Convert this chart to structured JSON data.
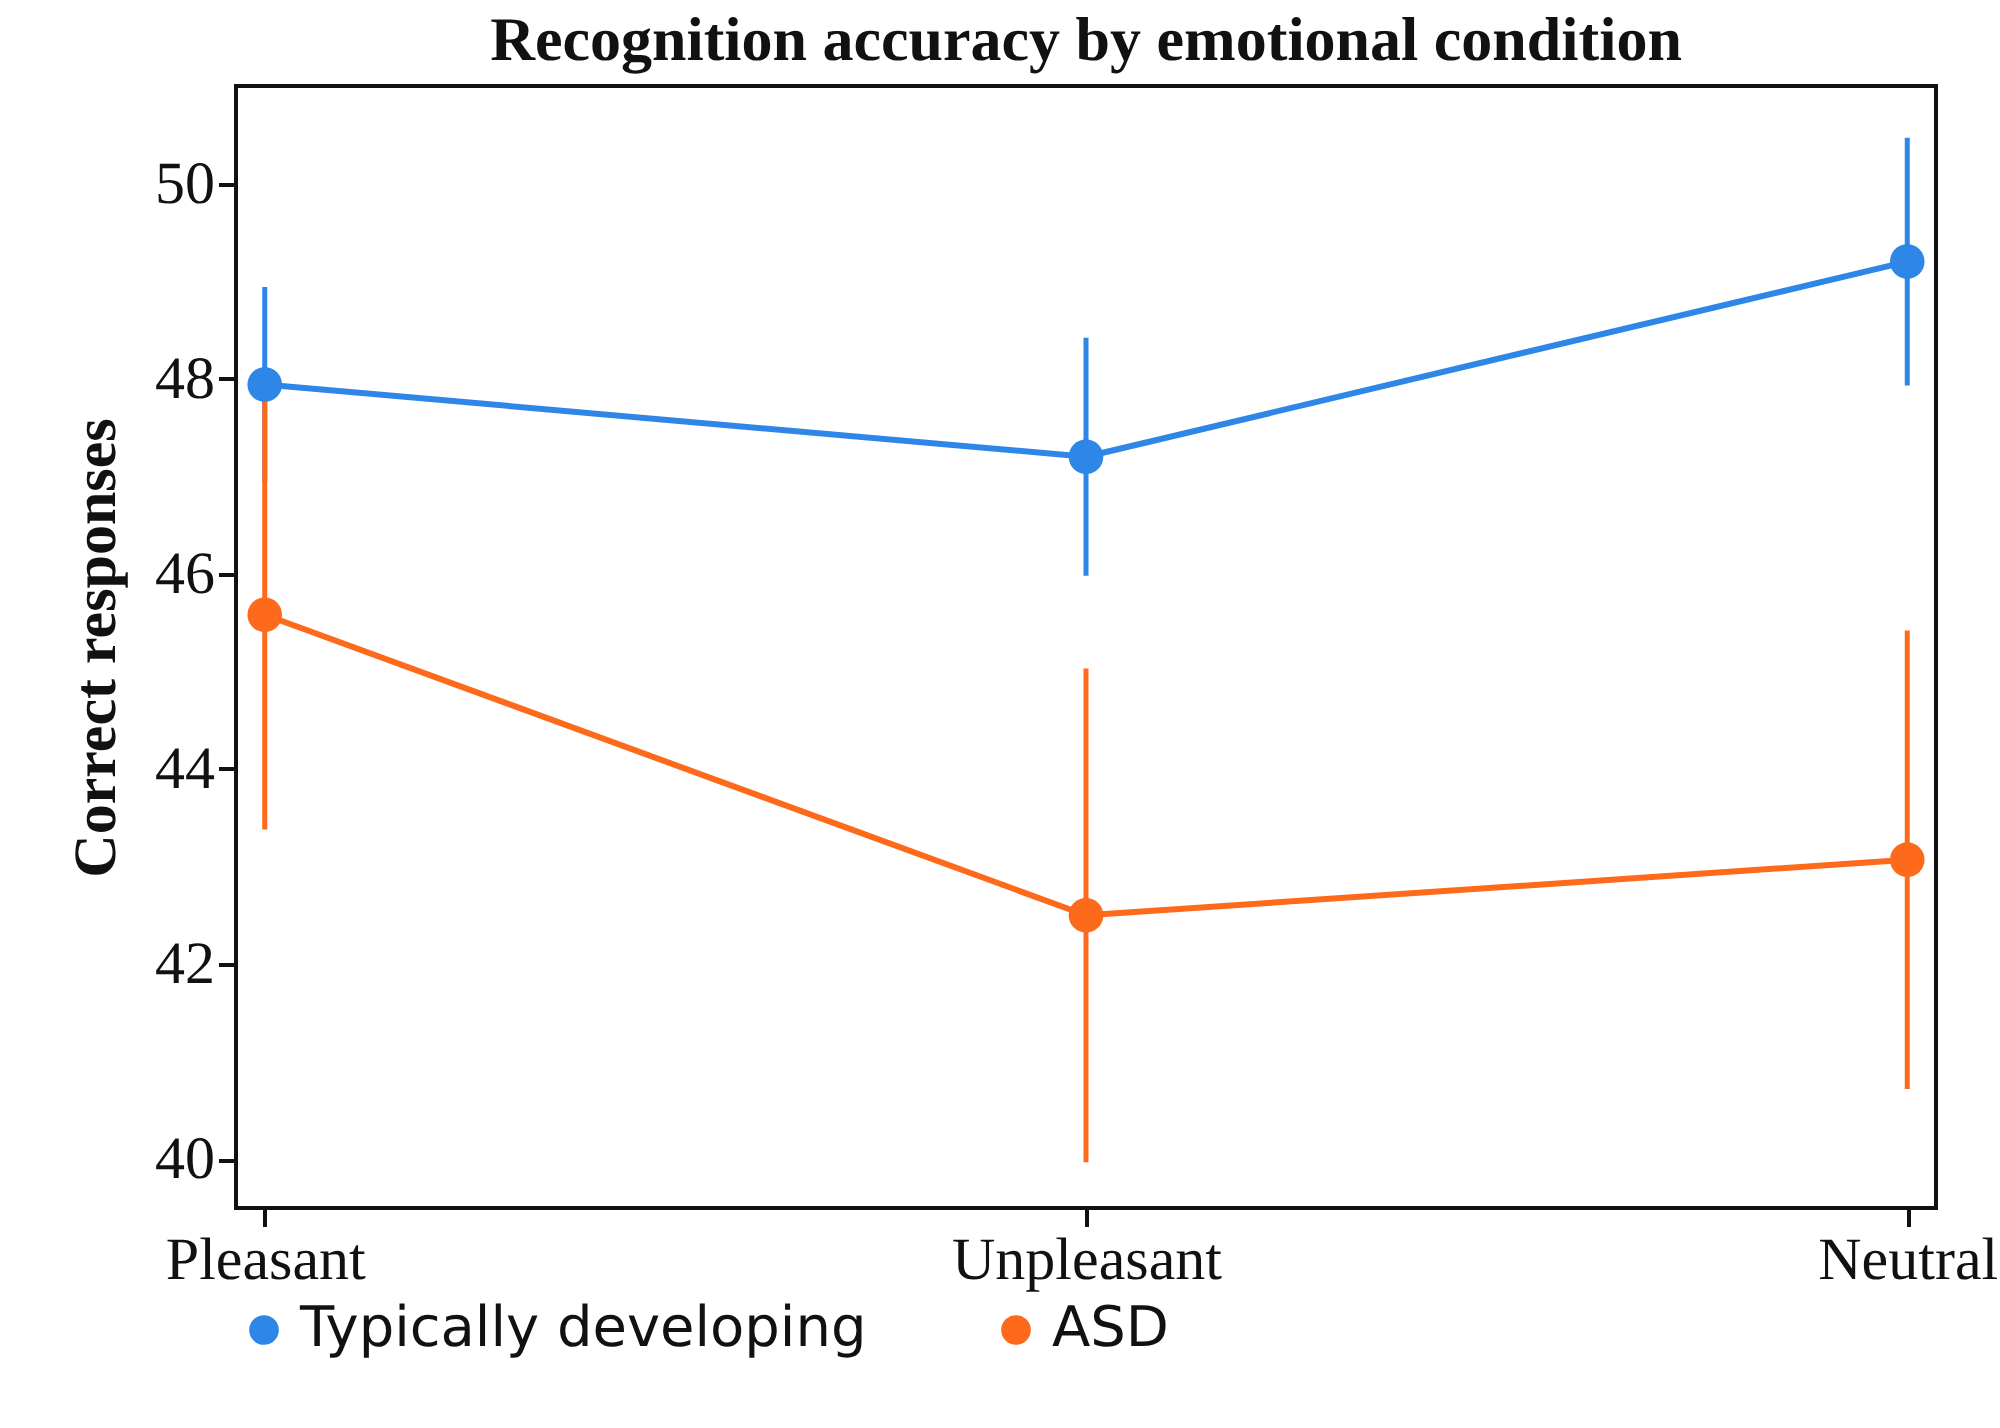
{
  "chart_data": {
    "type": "line",
    "title": "Recognition accuracy by emotional condition",
    "ylabel": "Correct responses",
    "categories": [
      "Pleasant",
      "Unpleasant",
      "Neutral"
    ],
    "ylim": [
      39.5,
      51
    ],
    "yticks": [
      40,
      42,
      44,
      46,
      48,
      50
    ],
    "marker": "circle",
    "legend": "bottom",
    "series": [
      {
        "name": "Typically developing",
        "color": "#2e86e6",
        "values": [
          47.94,
          47.2,
          49.2
        ],
        "errors": [
          1.0,
          1.22,
          1.27
        ]
      },
      {
        "name": "ASD",
        "color": "#fd6a1b",
        "values": [
          45.58,
          42.5,
          43.07
        ],
        "errors": [
          2.2,
          2.53,
          2.35
        ]
      }
    ]
  }
}
